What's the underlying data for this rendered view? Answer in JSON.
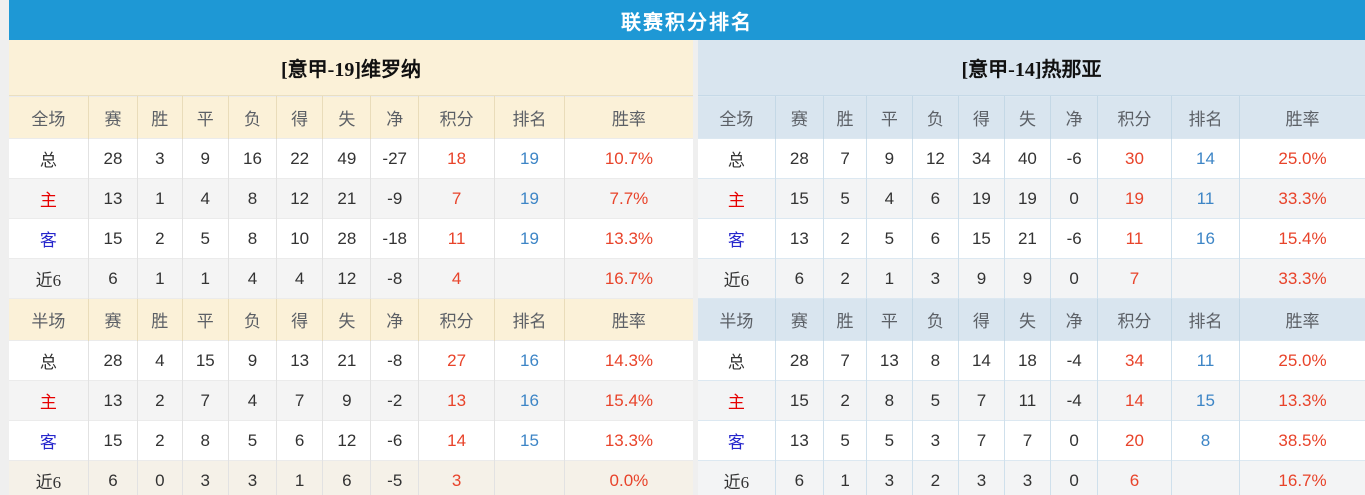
{
  "title": "联赛积分排名",
  "colors": {
    "titlebar": "#1e98d5",
    "cream": "#fbf1d8",
    "blueheader": "#d9e5ef",
    "points": "#e8432a",
    "rank": "#3d85c6",
    "home": "#e60000",
    "away": "#2626cc"
  },
  "tables": [
    {
      "team": "[意甲-19]维罗纳",
      "sections": [
        {
          "columns": [
            "全场",
            "赛",
            "胜",
            "平",
            "负",
            "得",
            "失",
            "净",
            "积分",
            "排名",
            "胜率"
          ],
          "rows": [
            {
              "label": "总",
              "type": "total",
              "stats": [
                "28",
                "3",
                "9",
                "16",
                "22",
                "49",
                "-27"
              ],
              "points": "18",
              "rank": "19",
              "rate": "10.7%"
            },
            {
              "label": "主",
              "type": "home",
              "stats": [
                "13",
                "1",
                "4",
                "8",
                "12",
                "21",
                "-9"
              ],
              "points": "7",
              "rank": "19",
              "rate": "7.7%"
            },
            {
              "label": "客",
              "type": "away",
              "stats": [
                "15",
                "2",
                "5",
                "8",
                "10",
                "28",
                "-18"
              ],
              "points": "11",
              "rank": "19",
              "rate": "13.3%"
            },
            {
              "label": "近6",
              "type": "recent",
              "stats": [
                "6",
                "1",
                "1",
                "4",
                "4",
                "12",
                "-8"
              ],
              "points": "4",
              "rank": "",
              "rate": "16.7%"
            }
          ]
        },
        {
          "columns": [
            "半场",
            "赛",
            "胜",
            "平",
            "负",
            "得",
            "失",
            "净",
            "积分",
            "排名",
            "胜率"
          ],
          "rows": [
            {
              "label": "总",
              "type": "total",
              "stats": [
                "28",
                "4",
                "15",
                "9",
                "13",
                "21",
                "-8"
              ],
              "points": "27",
              "rank": "16",
              "rate": "14.3%"
            },
            {
              "label": "主",
              "type": "home",
              "stats": [
                "13",
                "2",
                "7",
                "4",
                "7",
                "9",
                "-2"
              ],
              "points": "13",
              "rank": "16",
              "rate": "15.4%"
            },
            {
              "label": "客",
              "type": "away",
              "stats": [
                "15",
                "2",
                "8",
                "5",
                "6",
                "12",
                "-6"
              ],
              "points": "14",
              "rank": "15",
              "rate": "13.3%"
            },
            {
              "label": "近6",
              "type": "recent",
              "stats": [
                "6",
                "0",
                "3",
                "3",
                "1",
                "6",
                "-5"
              ],
              "points": "3",
              "rank": "",
              "rate": "0.0%"
            }
          ]
        }
      ]
    },
    {
      "team": "[意甲-14]热那亚",
      "sections": [
        {
          "columns": [
            "全场",
            "赛",
            "胜",
            "平",
            "负",
            "得",
            "失",
            "净",
            "积分",
            "排名",
            "胜率"
          ],
          "rows": [
            {
              "label": "总",
              "type": "total",
              "stats": [
                "28",
                "7",
                "9",
                "12",
                "34",
                "40",
                "-6"
              ],
              "points": "30",
              "rank": "14",
              "rate": "25.0%"
            },
            {
              "label": "主",
              "type": "home",
              "stats": [
                "15",
                "5",
                "4",
                "6",
                "19",
                "19",
                "0"
              ],
              "points": "19",
              "rank": "11",
              "rate": "33.3%"
            },
            {
              "label": "客",
              "type": "away",
              "stats": [
                "13",
                "2",
                "5",
                "6",
                "15",
                "21",
                "-6"
              ],
              "points": "11",
              "rank": "16",
              "rate": "15.4%"
            },
            {
              "label": "近6",
              "type": "recent",
              "stats": [
                "6",
                "2",
                "1",
                "3",
                "9",
                "9",
                "0"
              ],
              "points": "7",
              "rank": "",
              "rate": "33.3%"
            }
          ]
        },
        {
          "columns": [
            "半场",
            "赛",
            "胜",
            "平",
            "负",
            "得",
            "失",
            "净",
            "积分",
            "排名",
            "胜率"
          ],
          "rows": [
            {
              "label": "总",
              "type": "total",
              "stats": [
                "28",
                "7",
                "13",
                "8",
                "14",
                "18",
                "-4"
              ],
              "points": "34",
              "rank": "11",
              "rate": "25.0%"
            },
            {
              "label": "主",
              "type": "home",
              "stats": [
                "15",
                "2",
                "8",
                "5",
                "7",
                "11",
                "-4"
              ],
              "points": "14",
              "rank": "15",
              "rate": "13.3%"
            },
            {
              "label": "客",
              "type": "away",
              "stats": [
                "13",
                "5",
                "5",
                "3",
                "7",
                "7",
                "0"
              ],
              "points": "20",
              "rank": "8",
              "rate": "38.5%"
            },
            {
              "label": "近6",
              "type": "recent",
              "stats": [
                "6",
                "1",
                "3",
                "2",
                "3",
                "3",
                "0"
              ],
              "points": "6",
              "rank": "",
              "rate": "16.7%"
            }
          ]
        }
      ]
    }
  ]
}
